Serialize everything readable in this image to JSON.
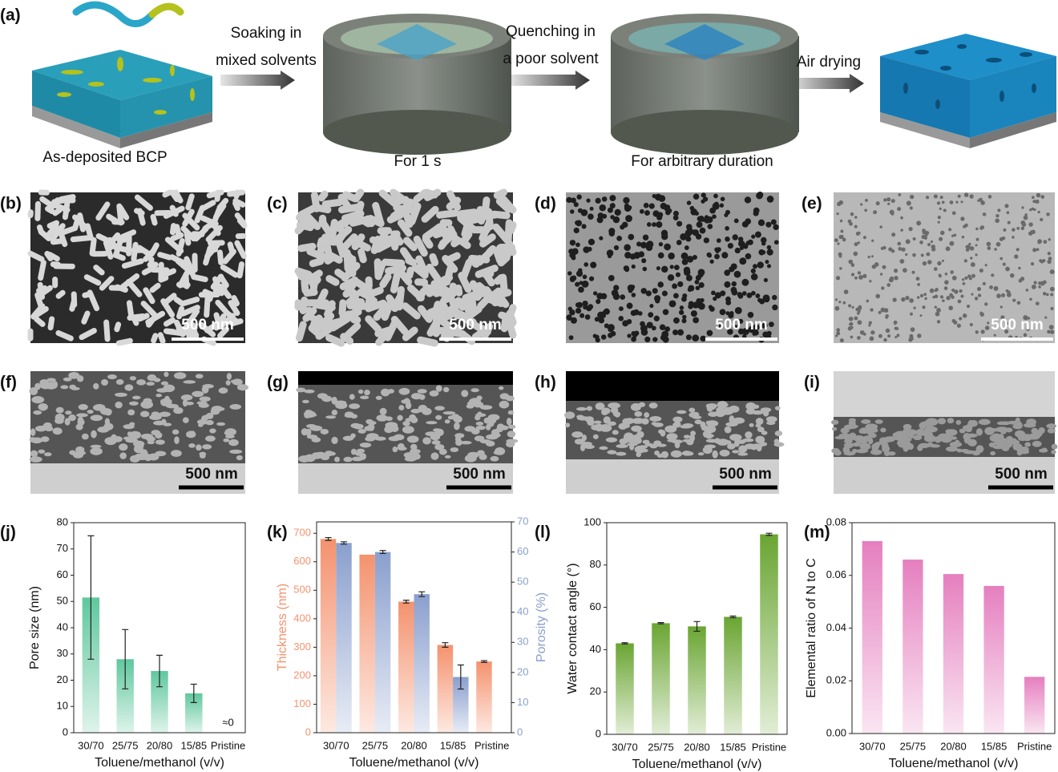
{
  "panel_labels": [
    "(a)",
    "(b)",
    "(c)",
    "(d)",
    "(e)",
    "(f)",
    "(g)",
    "(h)",
    "(i)",
    "(j)",
    "(k)",
    "(l)",
    "(m)"
  ],
  "schematic": {
    "arrow_labels": [
      [
        "Soaking in",
        "mixed solvents"
      ],
      [
        "Quenching in",
        "a poor solvent"
      ],
      [
        "Air drying"
      ]
    ],
    "captions": [
      "As-deposited BCP",
      "For 1 s",
      "For arbitrary duration"
    ]
  },
  "micrographs": {
    "scale_bars": [
      "500 nm",
      "500 nm",
      "500 nm",
      "500 nm",
      "500 nm",
      "500 nm",
      "500 nm",
      "500 nm"
    ]
  },
  "chart_data": [
    {
      "type": "bar",
      "categories": [
        "30/70",
        "25/75",
        "20/80",
        "15/85",
        "Pristine"
      ],
      "values": [
        51.5,
        28,
        23.5,
        15,
        0
      ],
      "errors": [
        23.5,
        11.3,
        6,
        3.5,
        null
      ],
      "color": "#5fc79e",
      "annotation": "≈0",
      "ylim": [
        0,
        80
      ],
      "yticks": [
        0,
        10,
        20,
        30,
        40,
        50,
        60,
        70,
        80
      ],
      "xlabel": "Toluene/methanol (v/v)",
      "ylabel": "Pore size (nm)"
    },
    {
      "type": "bar",
      "categories": [
        "30/70",
        "25/75",
        "20/80",
        "15/85",
        "Pristine"
      ],
      "series": [
        {
          "name": "Thickness (nm)",
          "color": "#f4926e",
          "values": [
            680,
            625,
            460,
            308,
            250
          ],
          "errors": [
            5,
            null,
            5,
            8,
            3
          ]
        },
        {
          "name": "Porosity (%)",
          "color": "#8a9fce",
          "axis": "y2",
          "values": [
            63,
            60,
            46,
            18.5,
            null
          ],
          "errors": [
            0.4,
            0.5,
            0.8,
            4,
            null
          ]
        }
      ],
      "ylim": [
        0,
        740
      ],
      "yticks": [
        0,
        100,
        200,
        300,
        400,
        500,
        600,
        700
      ],
      "y2lim": [
        0,
        70
      ],
      "y2ticks": [
        0,
        10,
        20,
        30,
        40,
        50,
        60,
        70
      ],
      "xlabel": "Toluene/methanol (v/v)",
      "ylabel": "Thickness (nm)",
      "y2label": "Porosity (%)"
    },
    {
      "type": "bar",
      "categories": [
        "30/70",
        "25/75",
        "20/80",
        "15/85",
        "Pristine"
      ],
      "values": [
        43,
        52.5,
        51,
        55.5,
        94.5
      ],
      "errors": [
        0.3,
        0.3,
        2.3,
        0.4,
        0.5
      ],
      "color": "#6aa532",
      "ylim": [
        0,
        100
      ],
      "yticks": [
        0,
        20,
        40,
        60,
        80,
        100
      ],
      "xlabel": "Toluene/methanol (v/v)",
      "ylabel": "Water contact angle (°)"
    },
    {
      "type": "bar",
      "categories": [
        "30/70",
        "25/75",
        "20/80",
        "15/85",
        "Pristine"
      ],
      "values": [
        0.073,
        0.066,
        0.0605,
        0.056,
        0.0215
      ],
      "color": "#e57fbf",
      "ylim": [
        0,
        0.08
      ],
      "yticks": [
        {
          "value": 0,
          "label": "0.00"
        },
        {
          "value": 0.02,
          "label": "0.02"
        },
        {
          "value": 0.04,
          "label": "0.04"
        },
        {
          "value": 0.06,
          "label": "0.06"
        },
        {
          "value": 0.08,
          "label": "0.08"
        }
      ],
      "xlabel": "Toluene/methanol (v/v)",
      "ylabel": "Elemental ratio of N to C"
    }
  ]
}
